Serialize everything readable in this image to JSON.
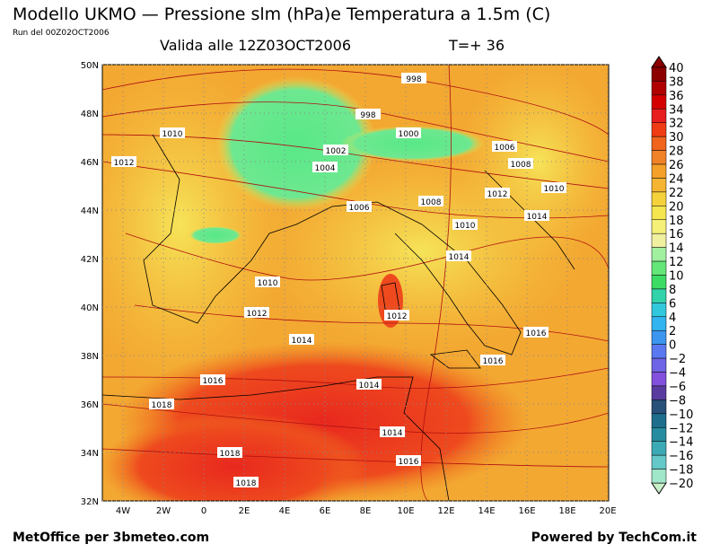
{
  "header": {
    "title": "Modello UKMO — Pressione slm (hPa)e Temperatura a 1.5m (C)",
    "run": "Run del 00Z02OCT2006",
    "valid": "Valida alle 12Z03OCT2006",
    "step": "T=+ 36"
  },
  "axes": {
    "lon": [
      "4W",
      "2W",
      "0",
      "2E",
      "4E",
      "6E",
      "8E",
      "10E",
      "12E",
      "14E",
      "16E",
      "18E",
      "20E"
    ],
    "lat": [
      "50N",
      "48N",
      "46N",
      "44N",
      "42N",
      "40N",
      "38N",
      "36N",
      "34N",
      "32N"
    ]
  },
  "isobars": [
    "998",
    "998",
    "1000",
    "1002",
    "1004",
    "1006",
    "1008",
    "1010",
    "1012",
    "1012",
    "1010",
    "1014",
    "1008",
    "1006",
    "1010",
    "1014",
    "1010",
    "1012",
    "1012",
    "1014",
    "1016",
    "1016",
    "1016",
    "1014",
    "1018",
    "1014",
    "1016",
    "1018",
    "1018"
  ],
  "colorbar": [
    "40",
    "38",
    "36",
    "34",
    "32",
    "30",
    "28",
    "26",
    "24",
    "22",
    "20",
    "18",
    "16",
    "14",
    "12",
    "10",
    "8",
    "6",
    "4",
    "2",
    "0",
    "−2",
    "−4",
    "−6",
    "−8",
    "−10",
    "−12",
    "−14",
    "−16",
    "−18",
    "−20"
  ],
  "footer": {
    "left": "MetOffice per 3bmeteo.com",
    "right": "Powered by TechCom.it"
  }
}
